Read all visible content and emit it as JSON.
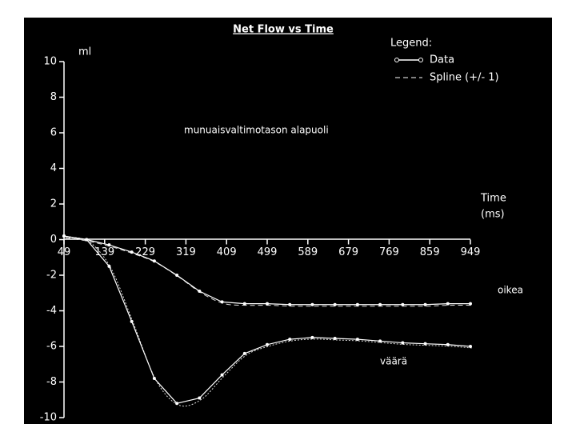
{
  "chart_data": {
    "type": "line",
    "title": "Net Flow vs Time",
    "y_label": "ml",
    "x_label": [
      "Time",
      "(ms)"
    ],
    "annotation": "munuaisvaltimotason alapuoli",
    "legend": {
      "title": "Legend:",
      "items": [
        "Data",
        "Spline (+/- 1)"
      ]
    },
    "x": [
      49,
      99,
      149,
      199,
      249,
      299,
      349,
      399,
      449,
      499,
      549,
      599,
      649,
      699,
      749,
      799,
      849,
      899,
      949
    ],
    "series": [
      {
        "name": "oikea",
        "color": "#ffffff",
        "values": [
          0.2,
          0,
          -0.3,
          -0.7,
          -1.2,
          -2.0,
          -2.9,
          -3.5,
          -3.6,
          -3.6,
          -3.65,
          -3.65,
          -3.65,
          -3.65,
          -3.65,
          -3.65,
          -3.65,
          -3.6,
          -3.6
        ]
      },
      {
        "name": "väärä",
        "color": "#ffffff",
        "values": [
          0.2,
          0,
          -1.5,
          -4.6,
          -7.8,
          -9.2,
          -8.9,
          -7.6,
          -6.4,
          -5.9,
          -5.6,
          -5.5,
          -5.55,
          -5.6,
          -5.7,
          -5.8,
          -5.85,
          -5.9,
          -6.0
        ]
      }
    ],
    "xlim": [
      49,
      949
    ],
    "xticks": [
      49,
      139,
      229,
      319,
      409,
      499,
      589,
      679,
      769,
      859,
      949
    ],
    "ylim": [
      -10,
      10
    ],
    "yticks": [
      -10,
      -8,
      -6,
      -4,
      -2,
      0,
      2,
      4,
      6,
      8,
      10
    ]
  }
}
